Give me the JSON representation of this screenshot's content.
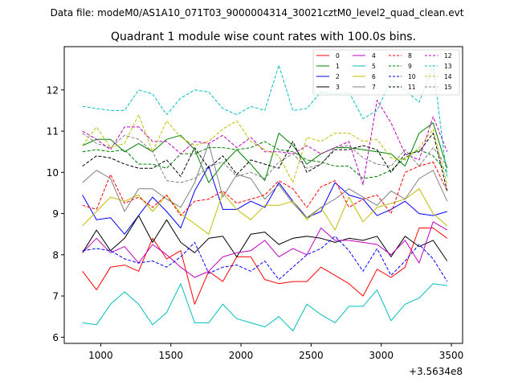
{
  "chart_data": {
    "type": "line",
    "suptitle": "Data file: modeM0/AS1A10_071T03_9000004314_30021cztM0_level2_quad_clean.evt",
    "title": "Quadrant 1 module wise count rates with 100.0s bins.",
    "xlabel": "",
    "ylabel": "",
    "x_offset_label": "+3.5634e8",
    "xlim": [
      740,
      3580
    ],
    "ylim": [
      5.85,
      13.05
    ],
    "xticks": [
      1000,
      1500,
      2000,
      2500,
      3000,
      3500
    ],
    "yticks": [
      6,
      7,
      8,
      9,
      10,
      11,
      12
    ],
    "x": [
      870,
      970,
      1070,
      1170,
      1270,
      1370,
      1470,
      1570,
      1670,
      1770,
      1870,
      1970,
      2070,
      2170,
      2270,
      2370,
      2470,
      2570,
      2670,
      2770,
      2870,
      2970,
      3070,
      3170,
      3270,
      3370,
      3470
    ],
    "legend_location": "upper right",
    "series": [
      {
        "name": "0",
        "color": "#ff0000",
        "dash": "solid",
        "values": [
          7.6,
          7.15,
          7.7,
          7.75,
          7.6,
          8.4,
          7.9,
          8.1,
          6.8,
          7.6,
          7.35,
          7.95,
          7.95,
          7.4,
          7.3,
          7.35,
          7.35,
          7.7,
          7.5,
          7.3,
          7.0,
          7.65,
          7.45,
          7.7,
          8.65,
          8.65,
          8.4
        ]
      },
      {
        "name": "1",
        "color": "#008000",
        "dash": "solid",
        "values": [
          10.65,
          10.8,
          10.8,
          10.5,
          10.7,
          10.5,
          10.8,
          10.9,
          10.55,
          9.75,
          10.2,
          10.55,
          10.2,
          9.8,
          10.95,
          10.65,
          10.2,
          10.45,
          10.6,
          10.6,
          10.55,
          10.5,
          10.45,
          10.15,
          10.95,
          11.2,
          10.1
        ]
      },
      {
        "name": "2",
        "color": "#0000ff",
        "dash": "solid",
        "values": [
          9.45,
          8.85,
          8.9,
          8.5,
          8.95,
          9.4,
          9.05,
          8.65,
          9.55,
          10.15,
          9.1,
          9.1,
          9.3,
          9.15,
          9.75,
          9.3,
          8.9,
          9.05,
          9.75,
          9.45,
          9.35,
          8.95,
          9.1,
          9.3,
          9.0,
          8.95,
          9.05
        ]
      },
      {
        "name": "3",
        "color": "#000000",
        "dash": "solid",
        "values": [
          8.05,
          8.6,
          8.1,
          8.4,
          8.95,
          8.3,
          8.85,
          8.3,
          8.05,
          8.4,
          8.45,
          7.95,
          8.5,
          8.55,
          8.25,
          8.4,
          8.45,
          8.4,
          8.3,
          8.4,
          8.35,
          8.45,
          7.95,
          8.45,
          8.2,
          8.35,
          7.85
        ]
      },
      {
        "name": "4",
        "color": "#bf00bf",
        "dash": "solid",
        "values": [
          8.05,
          8.4,
          8.05,
          8.2,
          7.8,
          8.25,
          8.0,
          7.7,
          7.45,
          7.6,
          7.95,
          8.05,
          8.1,
          8.35,
          7.95,
          8.15,
          8.0,
          8.65,
          8.35,
          8.35,
          8.3,
          8.25,
          8.0,
          8.35,
          7.8,
          8.8,
          8.6
        ]
      },
      {
        "name": "5",
        "color": "#00bfbf",
        "dash": "solid",
        "values": [
          6.35,
          6.3,
          6.8,
          7.1,
          6.8,
          6.3,
          6.6,
          7.3,
          6.35,
          6.35,
          6.8,
          6.45,
          6.35,
          6.25,
          6.5,
          6.15,
          6.8,
          6.55,
          6.35,
          6.75,
          6.75,
          7.15,
          6.4,
          6.8,
          6.95,
          7.3,
          7.25
        ]
      },
      {
        "name": "6",
        "color": "#bfbf00",
        "dash": "solid",
        "values": [
          8.7,
          9.05,
          9.4,
          9.3,
          9.45,
          9.05,
          9.45,
          9.0,
          8.75,
          8.5,
          9.5,
          9.1,
          8.85,
          9.2,
          9.2,
          9.3,
          8.85,
          9.15,
          8.6,
          9.4,
          8.8,
          9.15,
          9.25,
          9.35,
          9.6,
          9.0,
          8.7
        ]
      },
      {
        "name": "7",
        "color": "#808080",
        "dash": "solid",
        "values": [
          9.75,
          10.05,
          9.85,
          9.05,
          9.6,
          9.6,
          9.35,
          9.15,
          9.75,
          10.7,
          9.4,
          9.95,
          9.85,
          9.35,
          9.7,
          9.25,
          8.9,
          9.15,
          9.35,
          9.6,
          9.4,
          9.2,
          9.55,
          9.35,
          9.85,
          10.05,
          9.3
        ]
      },
      {
        "name": "8",
        "color": "#ff0000",
        "dash": "dashed",
        "values": [
          9.2,
          9.1,
          9.95,
          9.25,
          9.4,
          9.15,
          9.45,
          8.95,
          9.3,
          9.35,
          9.55,
          9.25,
          9.35,
          9.45,
          9.8,
          9.6,
          9.15,
          9.65,
          9.8,
          9.15,
          9.35,
          9.45,
          9.0,
          10.0,
          10.15,
          10.25,
          9.55
        ]
      },
      {
        "name": "9",
        "color": "#008000",
        "dash": "dashed",
        "values": [
          10.5,
          10.55,
          10.5,
          10.55,
          10.2,
          10.2,
          10.1,
          10.45,
          10.45,
          10.6,
          10.6,
          10.55,
          10.6,
          10.75,
          10.55,
          10.5,
          10.3,
          10.25,
          10.15,
          10.15,
          9.85,
          9.9,
          10.05,
          10.35,
          10.55,
          10.4,
          10.0
        ]
      },
      {
        "name": "10",
        "color": "#0000ff",
        "dash": "dashed",
        "values": [
          8.1,
          8.15,
          8.1,
          7.9,
          7.8,
          7.85,
          7.7,
          7.95,
          8.3,
          7.55,
          7.7,
          7.75,
          7.6,
          7.85,
          7.4,
          7.7,
          8.0,
          8.15,
          8.45,
          8.1,
          7.6,
          8.15,
          7.5,
          7.85,
          8.25,
          7.9,
          7.35
        ]
      },
      {
        "name": "11",
        "color": "#000000",
        "dash": "dashed",
        "values": [
          10.15,
          10.4,
          10.35,
          10.2,
          10.1,
          10.1,
          10.3,
          9.9,
          10.6,
          10.1,
          10.4,
          9.95,
          10.3,
          10.2,
          10.1,
          10.75,
          10.0,
          10.2,
          10.55,
          10.55,
          10.65,
          10.55,
          10.0,
          10.45,
          10.5,
          10.95,
          9.55
        ]
      },
      {
        "name": "12",
        "color": "#bf00bf",
        "dash": "dashed",
        "values": [
          11.0,
          10.8,
          10.55,
          11.1,
          11.1,
          10.75,
          10.75,
          10.45,
          10.75,
          10.7,
          10.9,
          10.6,
          10.85,
          10.5,
          10.5,
          10.45,
          10.65,
          10.45,
          10.6,
          10.75,
          9.7,
          11.75,
          11.2,
          10.45,
          10.3,
          11.35,
          10.5
        ]
      },
      {
        "name": "13",
        "color": "#00bfbf",
        "dash": "dashed",
        "values": [
          11.6,
          11.55,
          11.5,
          11.5,
          12.0,
          11.9,
          11.4,
          11.8,
          12.0,
          11.95,
          11.55,
          11.4,
          11.6,
          11.5,
          12.6,
          11.5,
          11.55,
          11.95,
          11.9,
          11.95,
          11.3,
          11.5,
          12.25,
          12.0,
          11.7,
          12.6,
          9.85
        ]
      },
      {
        "name": "14",
        "color": "#bfbf00",
        "dash": "dashed",
        "values": [
          10.65,
          11.1,
          10.6,
          10.7,
          11.4,
          10.5,
          11.25,
          10.85,
          10.65,
          10.75,
          11.05,
          11.25,
          10.75,
          10.55,
          10.4,
          9.75,
          10.85,
          10.75,
          10.95,
          10.95,
          10.75,
          10.8,
          10.35,
          10.3,
          10.6,
          11.05,
          9.7
        ]
      },
      {
        "name": "15",
        "color": "#808080",
        "dash": "dashed",
        "values": [
          10.95,
          10.7,
          10.6,
          10.9,
          10.8,
          10.5,
          9.8,
          9.75,
          9.85,
          10.15,
          10.25,
          9.9,
          10.0,
          9.85,
          10.25,
          10.45,
          10.1,
          10.2,
          10.6,
          10.65,
          10.35,
          10.2,
          10.15,
          10.55,
          10.15,
          10.6,
          10.15
        ]
      }
    ]
  }
}
